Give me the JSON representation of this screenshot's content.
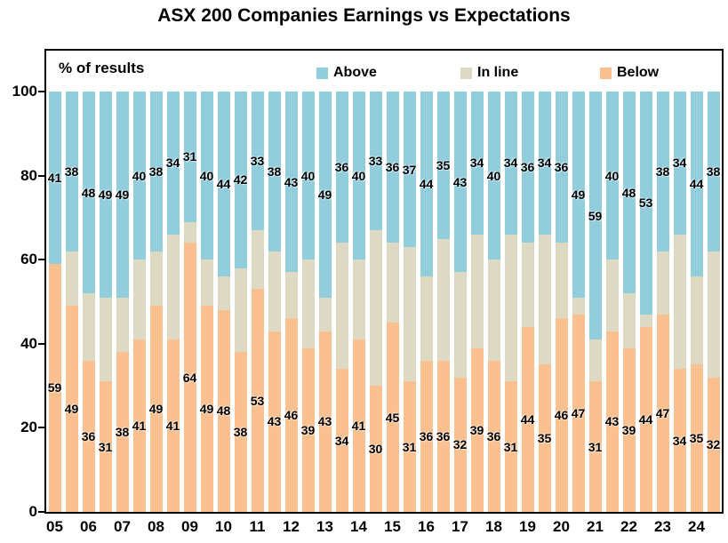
{
  "title": "ASX 200 Companies Earnings vs Expectations",
  "plot_label": "% of results",
  "legend": [
    {
      "label": "Above",
      "color": "#92CDDC"
    },
    {
      "label": "In line",
      "color": "#DDD9C3"
    },
    {
      "label": "Below",
      "color": "#FAC090"
    }
  ],
  "chart_data": {
    "type": "bar",
    "stacked": true,
    "percent_stacked": true,
    "title": "ASX 200 Companies Earnings vs Expectations",
    "ylabel": "% of results",
    "ylim": [
      0,
      100
    ],
    "y_ticks": [
      0,
      20,
      40,
      60,
      80,
      100
    ],
    "grid": false,
    "legend_position": "top-inside",
    "categories": [
      "05",
      "06",
      "07",
      "08",
      "09",
      "10",
      "11",
      "12",
      "13",
      "14",
      "15",
      "16",
      "17",
      "18",
      "19",
      "20",
      "21",
      "22",
      "23",
      "24"
    ],
    "bars_per_category": 2,
    "series": [
      {
        "name": "Below",
        "color": "#FAC090",
        "labels_shown": true,
        "values": [
          59,
          49,
          36,
          31,
          38,
          41,
          49,
          41,
          64,
          49,
          48,
          38,
          53,
          43,
          46,
          39,
          43,
          34,
          41,
          30,
          45,
          31,
          36,
          36,
          32,
          39,
          36,
          31,
          44,
          35,
          46,
          47,
          31,
          43,
          39,
          44,
          47,
          34,
          35,
          32
        ]
      },
      {
        "name": "In line",
        "color": "#DDD9C3",
        "labels_shown": false,
        "values": [
          0,
          13,
          16,
          20,
          13,
          19,
          13,
          25,
          5,
          11,
          8,
          20,
          14,
          19,
          11,
          21,
          8,
          30,
          19,
          37,
          19,
          32,
          20,
          29,
          25,
          27,
          24,
          35,
          20,
          31,
          18,
          4,
          10,
          17,
          13,
          3,
          15,
          32,
          21,
          30
        ]
      },
      {
        "name": "Above",
        "color": "#92CDDC",
        "labels_shown": true,
        "values": [
          41,
          38,
          48,
          49,
          49,
          40,
          38,
          34,
          31,
          40,
          44,
          42,
          33,
          38,
          43,
          40,
          49,
          36,
          40,
          33,
          36,
          37,
          44,
          35,
          43,
          34,
          40,
          34,
          36,
          34,
          36,
          49,
          59,
          40,
          48,
          53,
          38,
          34,
          44,
          38
        ]
      }
    ]
  }
}
